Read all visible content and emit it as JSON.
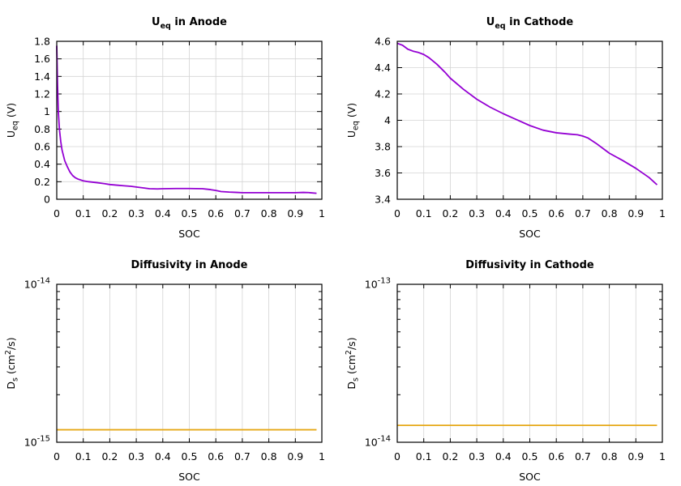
{
  "chart_data": [
    {
      "type": "line",
      "title": "Ueq in Anode",
      "title_main": "U",
      "title_sub": "eq",
      "title_rest": " in Anode",
      "xlabel": "SOC",
      "ylabel_main": "U",
      "ylabel_sub": "eq",
      "ylabel_rest": " (V)",
      "xlim": [
        0,
        1
      ],
      "ylim": [
        0,
        1.8
      ],
      "yscale": "linear",
      "xticks": [
        "0",
        "0.1",
        "0.2",
        "0.3",
        "0.4",
        "0.5",
        "0.6",
        "0.7",
        "0.8",
        "0.9",
        "1"
      ],
      "yticks": [
        "0",
        "0.2",
        "0.4",
        "0.6",
        "0.8",
        "1",
        "1.2",
        "1.4",
        "1.6",
        "1.8"
      ],
      "grid": true,
      "color": "#9400d3",
      "x": [
        0,
        0.003,
        0.006,
        0.01,
        0.015,
        0.02,
        0.03,
        0.04,
        0.05,
        0.06,
        0.07,
        0.08,
        0.1,
        0.12,
        0.15,
        0.18,
        0.2,
        0.23,
        0.25,
        0.28,
        0.3,
        0.33,
        0.35,
        0.38,
        0.4,
        0.45,
        0.5,
        0.55,
        0.58,
        0.6,
        0.62,
        0.65,
        0.68,
        0.7,
        0.75,
        0.8,
        0.85,
        0.9,
        0.93,
        0.95,
        0.98
      ],
      "y": [
        1.75,
        1.3,
        1.0,
        0.8,
        0.66,
        0.56,
        0.44,
        0.37,
        0.31,
        0.27,
        0.245,
        0.23,
        0.21,
        0.2,
        0.19,
        0.178,
        0.168,
        0.16,
        0.155,
        0.148,
        0.14,
        0.128,
        0.12,
        0.118,
        0.12,
        0.122,
        0.122,
        0.12,
        0.11,
        0.1,
        0.088,
        0.082,
        0.078,
        0.075,
        0.075,
        0.075,
        0.075,
        0.075,
        0.078,
        0.076,
        0.068
      ]
    },
    {
      "type": "line",
      "title": "Ueq in Cathode",
      "title_main": "U",
      "title_sub": "eq",
      "title_rest": " in Cathode",
      "xlabel": "SOC",
      "ylabel_main": "U",
      "ylabel_sub": "eq",
      "ylabel_rest": " (V)",
      "xlim": [
        0,
        1
      ],
      "ylim": [
        3.4,
        4.6
      ],
      "yscale": "linear",
      "xticks": [
        "0",
        "0.1",
        "0.2",
        "0.3",
        "0.4",
        "0.5",
        "0.6",
        "0.7",
        "0.8",
        "0.9",
        "1"
      ],
      "yticks": [
        "3.4",
        "3.6",
        "3.8",
        "4",
        "4.2",
        "4.4",
        "4.6"
      ],
      "grid": true,
      "color": "#9400d3",
      "x": [
        0,
        0.02,
        0.04,
        0.06,
        0.08,
        0.1,
        0.12,
        0.15,
        0.18,
        0.2,
        0.25,
        0.3,
        0.35,
        0.4,
        0.45,
        0.5,
        0.55,
        0.6,
        0.65,
        0.68,
        0.7,
        0.72,
        0.75,
        0.78,
        0.8,
        0.85,
        0.9,
        0.95,
        0.98
      ],
      "y": [
        4.585,
        4.57,
        4.54,
        4.525,
        4.515,
        4.5,
        4.475,
        4.425,
        4.365,
        4.32,
        4.235,
        4.16,
        4.1,
        4.05,
        4.005,
        3.96,
        3.925,
        3.905,
        3.895,
        3.89,
        3.88,
        3.865,
        3.825,
        3.78,
        3.75,
        3.695,
        3.635,
        3.565,
        3.51
      ]
    },
    {
      "type": "line",
      "title": "Diffusivity in Anode",
      "title_main": "Diffusivity in Anode",
      "xlabel": "SOC",
      "ylabel_main": "D",
      "ylabel_sub": "s",
      "ylabel_mid": " (cm",
      "ylabel_sup": "2",
      "ylabel_rest": "/s)",
      "xlim": [
        0,
        1
      ],
      "ylim": [
        1e-15,
        1e-14
      ],
      "yscale": "log",
      "xticks": [
        "0",
        "0.1",
        "0.2",
        "0.3",
        "0.4",
        "0.5",
        "0.6",
        "0.7",
        "0.8",
        "0.9",
        "1"
      ],
      "yticks_base": [
        "10",
        "10"
      ],
      "yticks_exp": [
        "-15",
        "-14"
      ],
      "grid": true,
      "color": "#e6a817",
      "x": [
        0,
        0.98
      ],
      "y": [
        1.2e-15,
        1.2e-15
      ]
    },
    {
      "type": "line",
      "title": "Diffusivity in Cathode",
      "title_main": "Diffusivity in Cathode",
      "xlabel": "SOC",
      "ylabel_main": "D",
      "ylabel_sub": "s",
      "ylabel_mid": " (cm",
      "ylabel_sup": "2",
      "ylabel_rest": "/s)",
      "xlim": [
        0,
        1
      ],
      "ylim": [
        1e-14,
        1e-13
      ],
      "yscale": "log",
      "xticks": [
        "0",
        "0.1",
        "0.2",
        "0.3",
        "0.4",
        "0.5",
        "0.6",
        "0.7",
        "0.8",
        "0.9",
        "1"
      ],
      "yticks_base": [
        "10",
        "10"
      ],
      "yticks_exp": [
        "-14",
        "-13"
      ],
      "grid": true,
      "color": "#e6a817",
      "x": [
        0,
        0.98
      ],
      "y": [
        1.28e-14,
        1.28e-14
      ]
    }
  ]
}
